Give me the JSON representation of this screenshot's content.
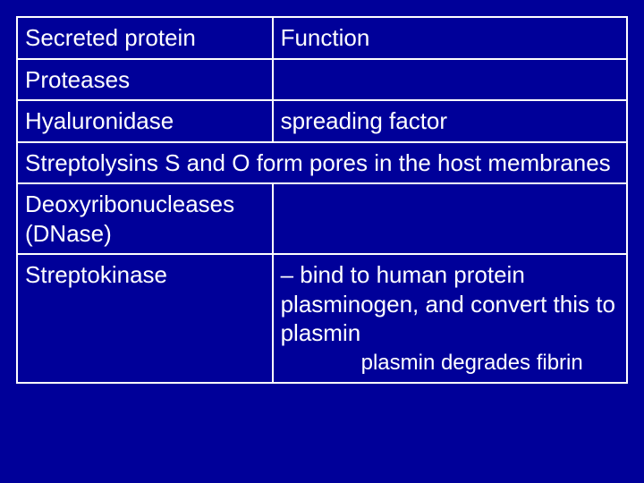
{
  "table": {
    "background_color": "#000099",
    "border_color": "#ffffff",
    "text_color": "#ffffff",
    "font_family": "Arial",
    "cell_fontsize": 26,
    "sub_fontsize": 24,
    "col_widths_pct": [
      42,
      58
    ],
    "header": {
      "left": "Secreted protein",
      "right": "Function"
    },
    "rows": [
      {
        "left": "Proteases",
        "right": ""
      },
      {
        "left": "Hyaluronidase",
        "right": "spreading factor"
      },
      {
        "left": "Streptolysins S and O",
        "right": "form pores in the host membranes",
        "span": true
      },
      {
        "left": "Deoxyribonucleases (DNase)",
        "right": ""
      },
      {
        "left": "Streptokinase",
        "right": "– bind to human protein plasminogen, and convert this to plasmin",
        "extra": "plasmin degrades fibrin"
      }
    ]
  }
}
